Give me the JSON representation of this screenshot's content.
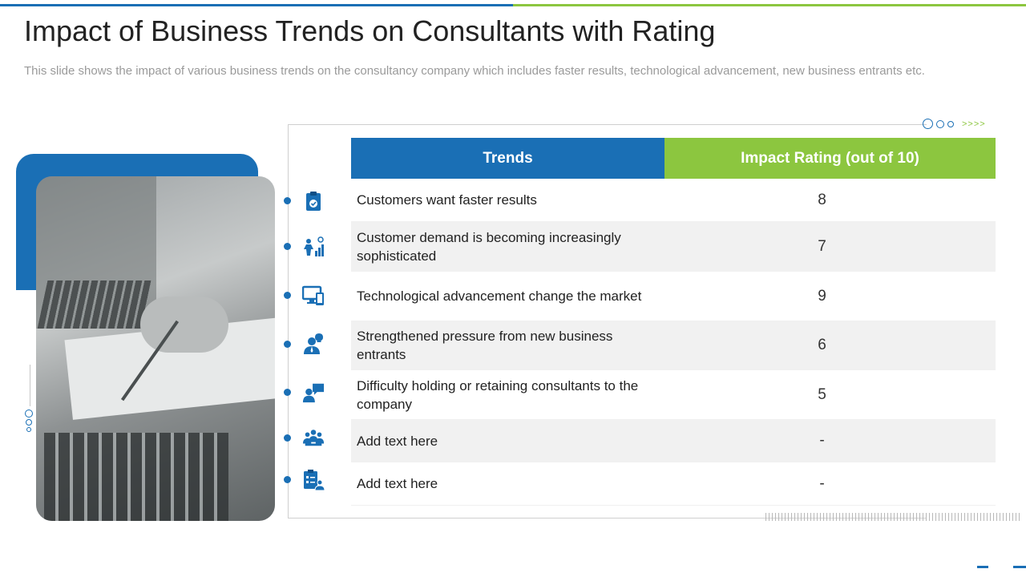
{
  "slide": {
    "title": "Impact of Business Trends on Consultants with Rating",
    "subtitle": "This slide shows the impact of various business trends on the consultancy  company which includes faster results, technological advancement,  new business entrants etc."
  },
  "colors": {
    "blue": "#1a6fb5",
    "green": "#8cc63f"
  },
  "table": {
    "headers": {
      "trends": "Trends",
      "rating": "Impact Rating (out of 10)"
    },
    "rows": [
      {
        "icon": "clipboard-check-icon",
        "trend": "Customers want faster results",
        "rating": "8"
      },
      {
        "icon": "growth-chart-person-icon",
        "trend": "Customer demand is becoming increasingly sophisticated",
        "rating": "7"
      },
      {
        "icon": "devices-icon",
        "trend": "Technological advancement change the market",
        "rating": "9"
      },
      {
        "icon": "person-idea-icon",
        "trend": "Strengthened pressure from new business entrants",
        "rating": "6"
      },
      {
        "icon": "person-chat-icon",
        "trend": "Difficulty holding or retaining consultants to the company",
        "rating": "5"
      },
      {
        "icon": "team-meeting-icon",
        "trend": "Add text here",
        "rating": "-"
      },
      {
        "icon": "checklist-person-icon",
        "trend": "Add text here",
        "rating": "-"
      }
    ]
  },
  "decorations": {
    "arrows": ">>>>"
  }
}
